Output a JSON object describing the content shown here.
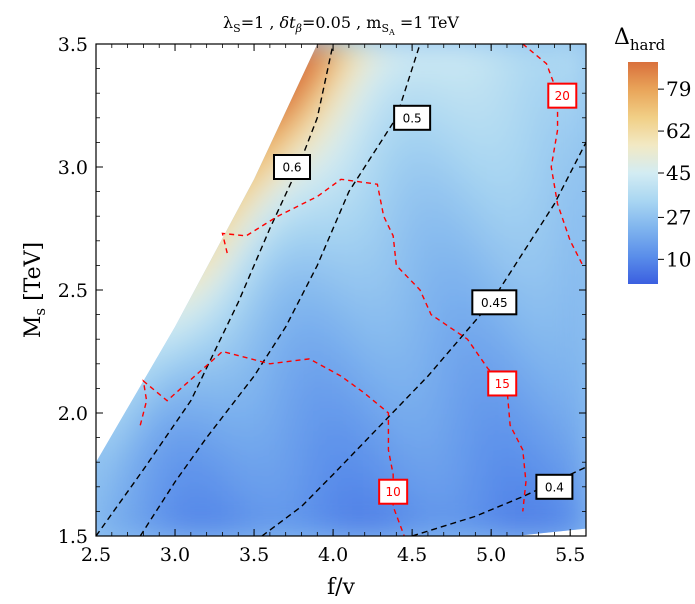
{
  "chart_data": {
    "type": "heatmap",
    "title": "λS=1 , δtβ=0.05 ,  mSA =1 TeV",
    "title_parts": {
      "lambda_sym": "λ",
      "lambda_sub": "S",
      "lambda_val": "=1 , ",
      "delta_sym": "δt",
      "delta_sub": "β",
      "delta_val": "=0.05 ,  m",
      "m_sub": "S",
      "m_subsub": "A",
      "m_val": " =1 TeV"
    },
    "xlabel": "f/v",
    "ylabel_main": "M",
    "ylabel_sub": "s",
    "ylabel_unit": " [TeV]",
    "xlim": [
      2.5,
      5.6
    ],
    "ylim": [
      1.5,
      3.5
    ],
    "x_ticks": [
      2.5,
      3.0,
      3.5,
      4.0,
      4.5,
      5.0,
      5.5
    ],
    "x_tick_labels": [
      "2.5",
      "3.0",
      "3.5",
      "4.0",
      "4.5",
      "5.0",
      "5.5"
    ],
    "y_ticks": [
      1.5,
      2.0,
      2.5,
      3.0,
      3.5
    ],
    "y_tick_labels": [
      "1.5",
      "2.0",
      "2.5",
      "3.0",
      "3.5"
    ],
    "colorbar": {
      "title_main": "Δ",
      "title_sub": "hard",
      "range": [
        0,
        90
      ],
      "ticks": [
        10,
        27,
        45,
        62,
        79
      ],
      "tick_labels": [
        "10",
        "27",
        "45",
        "62",
        "79"
      ],
      "colors": [
        "#3b5fe0",
        "#5a8eea",
        "#7fb4ee",
        "#a9d6f2",
        "#d3ecf3",
        "#f2e9c4",
        "#f1cf86",
        "#e9a55a",
        "#d9703c"
      ]
    },
    "contour_levels": [
      10,
      15,
      20,
      25,
      30,
      35,
      40,
      45,
      50,
      55,
      60,
      65,
      70,
      75,
      80,
      85
    ],
    "tuning_contours": [
      {
        "label": "10",
        "color": "#ff0000",
        "points": [
          [
            2.78,
            1.95
          ],
          [
            2.82,
            2.05
          ],
          [
            2.8,
            2.13
          ],
          [
            2.95,
            2.05
          ],
          [
            3.3,
            2.25
          ],
          [
            3.6,
            2.2
          ],
          [
            3.85,
            2.22
          ],
          [
            4.05,
            2.15
          ],
          [
            4.2,
            2.08
          ],
          [
            4.35,
            2.0
          ],
          [
            4.35,
            1.85
          ],
          [
            4.38,
            1.75
          ],
          [
            4.38,
            1.62
          ],
          [
            4.45,
            1.5
          ]
        ]
      },
      {
        "label": "15",
        "color": "#ff0000",
        "points": [
          [
            3.33,
            2.65
          ],
          [
            3.3,
            2.73
          ],
          [
            3.45,
            2.72
          ],
          [
            3.65,
            2.8
          ],
          [
            3.9,
            2.88
          ],
          [
            4.05,
            2.95
          ],
          [
            4.28,
            2.93
          ],
          [
            4.32,
            2.8
          ],
          [
            4.38,
            2.72
          ],
          [
            4.4,
            2.6
          ],
          [
            4.55,
            2.5
          ],
          [
            4.62,
            2.4
          ],
          [
            4.85,
            2.3
          ],
          [
            4.98,
            2.18
          ],
          [
            5.1,
            2.1
          ],
          [
            5.12,
            1.95
          ],
          [
            5.2,
            1.85
          ],
          [
            5.22,
            1.72
          ],
          [
            5.2,
            1.6
          ]
        ]
      },
      {
        "label": "20",
        "color": "#ff0000",
        "points": [
          [
            5.2,
            3.5
          ],
          [
            5.35,
            3.42
          ],
          [
            5.42,
            3.3
          ],
          [
            5.42,
            3.15
          ],
          [
            5.38,
            3.0
          ],
          [
            5.42,
            2.85
          ],
          [
            5.5,
            2.7
          ],
          [
            5.58,
            2.6
          ]
        ]
      }
    ],
    "tuning_label_positions": [
      {
        "label": "10",
        "x": 4.38,
        "y": 1.68
      },
      {
        "label": "15",
        "x": 5.07,
        "y": 2.12
      },
      {
        "label": "20",
        "x": 5.45,
        "y": 3.29
      }
    ],
    "omega_contours": [
      {
        "label": "0.4",
        "color": "#000000",
        "points": [
          [
            4.5,
            1.5
          ],
          [
            4.9,
            1.58
          ],
          [
            5.2,
            1.66
          ],
          [
            5.6,
            1.78
          ]
        ]
      },
      {
        "label": "0.45",
        "color": "#000000",
        "points": [
          [
            3.55,
            1.5
          ],
          [
            3.8,
            1.62
          ],
          [
            4.0,
            1.75
          ],
          [
            4.3,
            1.95
          ],
          [
            4.6,
            2.15
          ],
          [
            4.8,
            2.3
          ],
          [
            5.0,
            2.45
          ],
          [
            5.2,
            2.65
          ],
          [
            5.4,
            2.85
          ],
          [
            5.6,
            3.1
          ]
        ]
      },
      {
        "label": "0.5",
        "color": "#000000",
        "points": [
          [
            2.78,
            1.5
          ],
          [
            3.0,
            1.72
          ],
          [
            3.2,
            1.9
          ],
          [
            3.5,
            2.15
          ],
          [
            3.7,
            2.35
          ],
          [
            3.9,
            2.6
          ],
          [
            4.1,
            2.9
          ],
          [
            4.25,
            3.05
          ],
          [
            4.4,
            3.2
          ],
          [
            4.55,
            3.5
          ]
        ]
      },
      {
        "label": "0.6",
        "color": "#000000",
        "points": [
          [
            2.5,
            1.5
          ],
          [
            2.8,
            1.77
          ],
          [
            3.1,
            2.05
          ],
          [
            3.4,
            2.45
          ],
          [
            3.6,
            2.75
          ],
          [
            3.78,
            3.0
          ],
          [
            3.9,
            3.2
          ],
          [
            4.0,
            3.5
          ]
        ]
      }
    ],
    "omega_label_positions": [
      {
        "label": "0.4",
        "x": 5.4,
        "y": 1.7
      },
      {
        "label": "0.45",
        "x": 5.02,
        "y": 2.45
      },
      {
        "label": "0.5",
        "x": 4.5,
        "y": 3.2
      },
      {
        "label": "0.6",
        "x": 3.74,
        "y": 3.0
      }
    ],
    "excluded_region": {
      "left_boundary": [
        [
          2.5,
          1.8
        ],
        [
          3.0,
          2.35
        ],
        [
          3.5,
          2.95
        ],
        [
          3.9,
          3.5
        ]
      ],
      "bottom_right_corner": [
        [
          5.15,
          1.5
        ],
        [
          5.6,
          1.53
        ],
        [
          5.6,
          1.5
        ]
      ]
    }
  }
}
